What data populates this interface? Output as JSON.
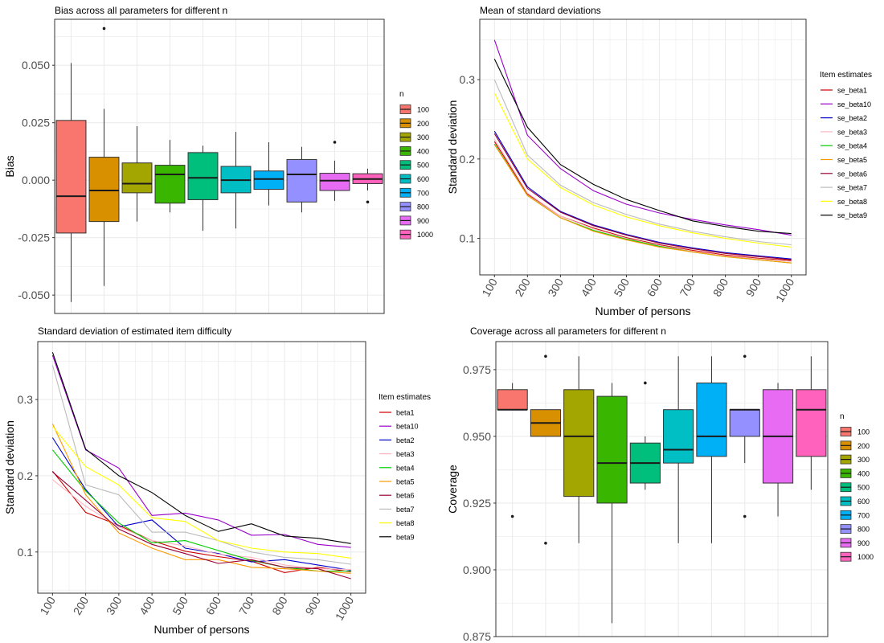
{
  "chart_data": [
    {
      "id": "bias",
      "type": "box",
      "title": "Bias across all parameters for different n",
      "xlabel": "",
      "ylabel": "Bias",
      "ylim": [
        -0.058,
        0.07
      ],
      "yticks": [
        -0.05,
        -0.025,
        0.0,
        0.025,
        0.05
      ],
      "ytick_labels": [
        "-0.050",
        "-0.025",
        "0.000",
        "0.025",
        "0.050"
      ],
      "legend": {
        "title": "n",
        "placement": "right"
      },
      "boxes": [
        {
          "label": "100",
          "color": "#F8766D",
          "whisker_low": -0.053,
          "q1": -0.023,
          "median": -0.007,
          "q3": 0.026,
          "whisker_high": 0.051,
          "outliers": []
        },
        {
          "label": "200",
          "color": "#D89000",
          "whisker_low": -0.046,
          "q1": -0.018,
          "median": -0.0045,
          "q3": 0.01,
          "whisker_high": 0.031,
          "outliers": [
            0.066
          ]
        },
        {
          "label": "300",
          "color": "#A3A500",
          "whisker_low": -0.018,
          "q1": -0.0055,
          "median": -0.0015,
          "q3": 0.0075,
          "whisker_high": 0.0235,
          "outliers": []
        },
        {
          "label": "400",
          "color": "#39B600",
          "whisker_low": -0.014,
          "q1": -0.01,
          "median": 0.0025,
          "q3": 0.0065,
          "whisker_high": 0.0175,
          "outliers": []
        },
        {
          "label": "500",
          "color": "#00BF7D",
          "whisker_low": -0.022,
          "q1": -0.0085,
          "median": 0.001,
          "q3": 0.012,
          "whisker_high": 0.015,
          "outliers": []
        },
        {
          "label": "600",
          "color": "#00BFC4",
          "whisker_low": -0.021,
          "q1": -0.0055,
          "median": 0.0,
          "q3": 0.006,
          "whisker_high": 0.021,
          "outliers": []
        },
        {
          "label": "700",
          "color": "#00B0F6",
          "whisker_low": -0.011,
          "q1": -0.004,
          "median": 0.0005,
          "q3": 0.004,
          "whisker_high": 0.0165,
          "outliers": []
        },
        {
          "label": "800",
          "color": "#9590FF",
          "whisker_low": -0.014,
          "q1": -0.0095,
          "median": 0.0025,
          "q3": 0.009,
          "whisker_high": 0.0145,
          "outliers": []
        },
        {
          "label": "900",
          "color": "#E76BF3",
          "whisker_low": -0.009,
          "q1": -0.0045,
          "median": -0.0002,
          "q3": 0.003,
          "whisker_high": 0.0085,
          "outliers": [
            0.0165
          ]
        },
        {
          "label": "1000",
          "color": "#FF62BC",
          "whisker_low": -0.0045,
          "q1": -0.0015,
          "median": 0.0005,
          "q3": 0.0028,
          "whisker_high": 0.005,
          "outliers": [
            -0.0095
          ]
        }
      ]
    },
    {
      "id": "mean_sd",
      "type": "line",
      "title": "Mean of standard deviations",
      "xlabel": "Number of persons",
      "ylabel": "Standard deviation",
      "x": [
        "100",
        "200",
        "300",
        "400",
        "500",
        "600",
        "700",
        "800",
        "900",
        "1000"
      ],
      "ylim": [
        0.054,
        0.376
      ],
      "yticks": [
        0.1,
        0.2,
        0.3
      ],
      "ytick_labels": [
        "0.1",
        "0.2",
        "0.3"
      ],
      "legend": {
        "title": "Item estimates",
        "placement": "right"
      },
      "series": [
        {
          "name": "se_beta1",
          "color": "#CC0000",
          "values": [
            0.222,
            0.156,
            0.128,
            0.113,
            0.101,
            0.092,
            0.085,
            0.079,
            0.075,
            0.072
          ]
        },
        {
          "name": "se_beta10",
          "color": "#9900CC",
          "values": [
            0.35,
            0.23,
            0.188,
            0.16,
            0.143,
            0.132,
            0.124,
            0.117,
            0.111,
            0.104
          ]
        },
        {
          "name": "se_beta2",
          "color": "#0000CC",
          "values": [
            0.235,
            0.165,
            0.134,
            0.117,
            0.105,
            0.095,
            0.088,
            0.082,
            0.078,
            0.074
          ]
        },
        {
          "name": "se_beta3",
          "color": "#FFB6C1",
          "values": [
            0.225,
            0.157,
            0.128,
            0.112,
            0.1,
            0.091,
            0.084,
            0.078,
            0.074,
            0.071
          ]
        },
        {
          "name": "se_beta4",
          "color": "#00CC00",
          "values": [
            0.219,
            0.154,
            0.126,
            0.11,
            0.099,
            0.09,
            0.083,
            0.077,
            0.073,
            0.069
          ]
        },
        {
          "name": "se_beta5",
          "color": "#FF9900",
          "values": [
            0.218,
            0.154,
            0.126,
            0.109,
            0.098,
            0.089,
            0.083,
            0.077,
            0.073,
            0.069
          ]
        },
        {
          "name": "se_beta6",
          "color": "#990033",
          "values": [
            0.232,
            0.163,
            0.133,
            0.116,
            0.104,
            0.094,
            0.087,
            0.081,
            0.077,
            0.073
          ]
        },
        {
          "name": "se_beta7",
          "color": "#BBBBBB",
          "values": [
            0.3,
            0.205,
            0.167,
            0.145,
            0.13,
            0.118,
            0.109,
            0.102,
            0.096,
            0.092
          ]
        },
        {
          "name": "se_beta8",
          "color": "#FFFF00",
          "values": [
            0.283,
            0.2,
            0.164,
            0.142,
            0.127,
            0.116,
            0.107,
            0.1,
            0.094,
            0.089
          ]
        },
        {
          "name": "se_beta9",
          "color": "#000000",
          "values": [
            0.326,
            0.24,
            0.193,
            0.168,
            0.149,
            0.135,
            0.122,
            0.115,
            0.109,
            0.106
          ]
        }
      ]
    },
    {
      "id": "sd_item",
      "type": "line",
      "title": "Standard deviation of estimated item difficulty",
      "xlabel": "Number of persons",
      "ylabel": "Standard deviation",
      "x": [
        "100",
        "200",
        "300",
        "400",
        "500",
        "600",
        "700",
        "800",
        "900",
        "1000"
      ],
      "ylim": [
        0.046,
        0.376
      ],
      "yticks": [
        0.1,
        0.2,
        0.3
      ],
      "ytick_labels": [
        "0.1",
        "0.2",
        "0.3"
      ],
      "legend": {
        "title": "Item estimates",
        "placement": "right"
      },
      "series": [
        {
          "name": "beta1",
          "color": "#CC0000",
          "values": [
            0.206,
            0.152,
            0.135,
            0.115,
            0.101,
            0.094,
            0.088,
            0.073,
            0.08,
            0.074
          ]
        },
        {
          "name": "beta10",
          "color": "#9900CC",
          "values": [
            0.358,
            0.234,
            0.21,
            0.148,
            0.151,
            0.142,
            0.122,
            0.123,
            0.11,
            0.106
          ]
        },
        {
          "name": "beta2",
          "color": "#0000CC",
          "values": [
            0.25,
            0.182,
            0.133,
            0.142,
            0.105,
            0.098,
            0.087,
            0.09,
            0.083,
            0.076
          ]
        },
        {
          "name": "beta3",
          "color": "#FFB6C1",
          "values": [
            0.195,
            0.16,
            0.133,
            0.115,
            0.108,
            0.097,
            0.093,
            0.083,
            0.078,
            0.077
          ]
        },
        {
          "name": "beta4",
          "color": "#00CC00",
          "values": [
            0.234,
            0.18,
            0.138,
            0.112,
            0.115,
            0.102,
            0.089,
            0.08,
            0.075,
            0.075
          ]
        },
        {
          "name": "beta5",
          "color": "#FF9900",
          "values": [
            0.268,
            0.175,
            0.125,
            0.105,
            0.09,
            0.09,
            0.08,
            0.078,
            0.075,
            0.072
          ]
        },
        {
          "name": "beta6",
          "color": "#990033",
          "values": [
            0.205,
            0.168,
            0.13,
            0.11,
            0.098,
            0.085,
            0.09,
            0.08,
            0.078,
            0.065
          ]
        },
        {
          "name": "beta7",
          "color": "#BBBBBB",
          "values": [
            0.345,
            0.188,
            0.175,
            0.126,
            0.126,
            0.115,
            0.1,
            0.093,
            0.09,
            0.084
          ]
        },
        {
          "name": "beta8",
          "color": "#FFFF00",
          "values": [
            0.265,
            0.212,
            0.188,
            0.145,
            0.14,
            0.115,
            0.105,
            0.1,
            0.098,
            0.092
          ]
        },
        {
          "name": "beta9",
          "color": "#000000",
          "values": [
            0.362,
            0.235,
            0.2,
            0.178,
            0.148,
            0.127,
            0.137,
            0.121,
            0.118,
            0.111
          ]
        }
      ]
    },
    {
      "id": "coverage",
      "type": "box",
      "title": "Coverage across all parameters for different n",
      "xlabel": "",
      "ylabel": "Coverage",
      "ylim": [
        0.875,
        0.9855
      ],
      "yticks": [
        0.875,
        0.9,
        0.925,
        0.95,
        0.975
      ],
      "ytick_labels": [
        "0.875",
        "0.900",
        "0.925",
        "0.950",
        "0.975"
      ],
      "legend": {
        "title": "n",
        "placement": "right"
      },
      "boxes": [
        {
          "label": "100",
          "color": "#F8766D",
          "whisker_low": 0.96,
          "q1": 0.96,
          "median": 0.96,
          "q3": 0.9675,
          "whisker_high": 0.97,
          "outliers": [
            0.92
          ]
        },
        {
          "label": "200",
          "color": "#D89000",
          "whisker_low": 0.95,
          "q1": 0.95,
          "median": 0.955,
          "q3": 0.96,
          "whisker_high": 0.96,
          "outliers": [
            0.98,
            0.91
          ]
        },
        {
          "label": "300",
          "color": "#A3A500",
          "whisker_low": 0.91,
          "q1": 0.9275,
          "median": 0.95,
          "q3": 0.9675,
          "whisker_high": 0.98,
          "outliers": []
        },
        {
          "label": "400",
          "color": "#39B600",
          "whisker_low": 0.88,
          "q1": 0.925,
          "median": 0.94,
          "q3": 0.965,
          "whisker_high": 0.97,
          "outliers": []
        },
        {
          "label": "500",
          "color": "#00BF7D",
          "whisker_low": 0.93,
          "q1": 0.9325,
          "median": 0.94,
          "q3": 0.9475,
          "whisker_high": 0.95,
          "outliers": [
            0.97
          ]
        },
        {
          "label": "600",
          "color": "#00BFC4",
          "whisker_low": 0.91,
          "q1": 0.94,
          "median": 0.945,
          "q3": 0.96,
          "whisker_high": 0.98,
          "outliers": []
        },
        {
          "label": "700",
          "color": "#00B0F6",
          "whisker_low": 0.91,
          "q1": 0.9425,
          "median": 0.95,
          "q3": 0.97,
          "whisker_high": 0.98,
          "outliers": []
        },
        {
          "label": "800",
          "color": "#9590FF",
          "whisker_low": 0.94,
          "q1": 0.95,
          "median": 0.96,
          "q3": 0.96,
          "whisker_high": 0.96,
          "outliers": [
            0.98,
            0.92
          ]
        },
        {
          "label": "900",
          "color": "#E76BF3",
          "whisker_low": 0.92,
          "q1": 0.9325,
          "median": 0.95,
          "q3": 0.9675,
          "whisker_high": 0.97,
          "outliers": []
        },
        {
          "label": "1000",
          "color": "#FF62BC",
          "whisker_low": 0.93,
          "q1": 0.9425,
          "median": 0.96,
          "q3": 0.9675,
          "whisker_high": 0.98,
          "outliers": []
        }
      ]
    }
  ]
}
